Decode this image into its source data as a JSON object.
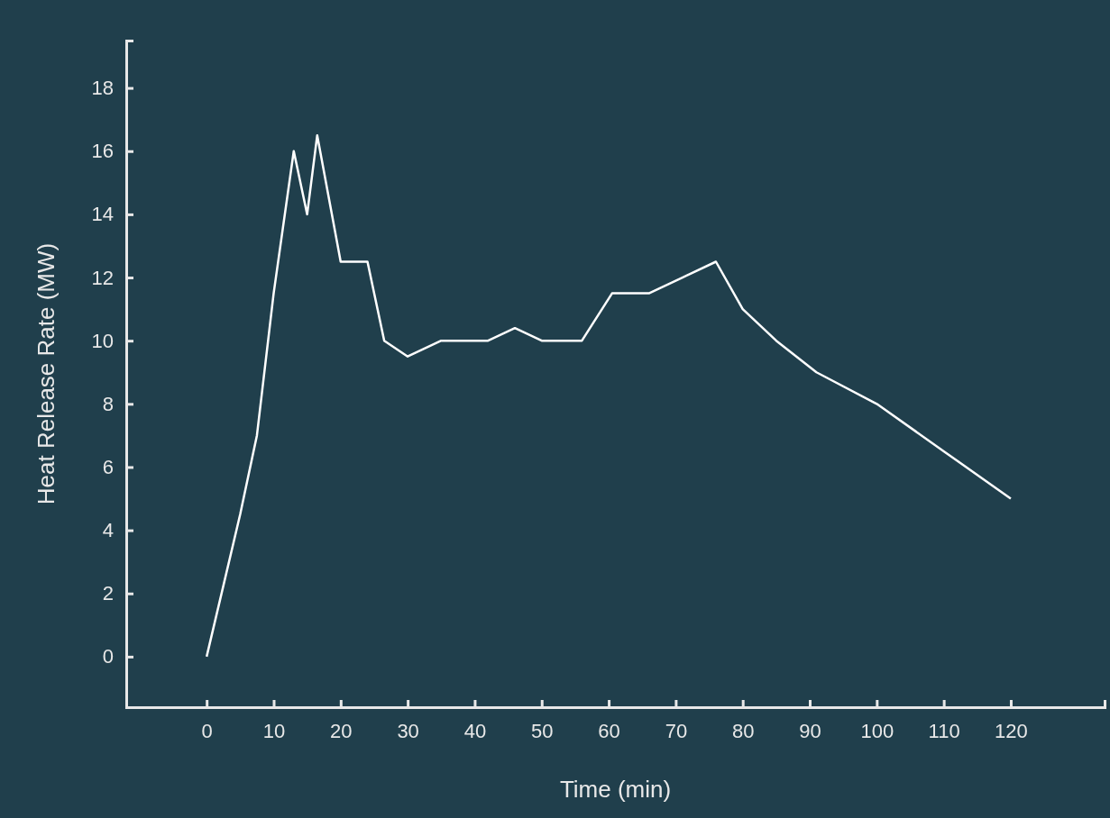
{
  "chart_data": {
    "type": "line",
    "xlabel": "Time (min)",
    "ylabel": "Heat Release Rate (MW)",
    "x": [
      0,
      5,
      7.5,
      10,
      13,
      15,
      16.5,
      20,
      24,
      26.5,
      30,
      35,
      42,
      46,
      50,
      56,
      60.5,
      66,
      71,
      76,
      80,
      85,
      91,
      100,
      110,
      120
    ],
    "series": [
      {
        "color": "#ffffff",
        "values": [
          0,
          4.5,
          7,
          11.5,
          16,
          14,
          16.5,
          12.5,
          12.5,
          10,
          9.5,
          10,
          10,
          10.4,
          10,
          10,
          11.5,
          11.5,
          12,
          12.5,
          11,
          10,
          9,
          8,
          6.5,
          5
        ]
      }
    ],
    "xlim": [
      -12,
      134
    ],
    "xticks": [
      0,
      10,
      20,
      30,
      40,
      50,
      60,
      70,
      80,
      90,
      100,
      110,
      120
    ],
    "ylim": [
      -1.6,
      19.5
    ],
    "yticks": [
      0,
      2,
      4,
      6,
      8,
      10,
      12,
      14,
      16,
      18
    ],
    "grid": false,
    "marker": "none",
    "line_style": "solid"
  }
}
